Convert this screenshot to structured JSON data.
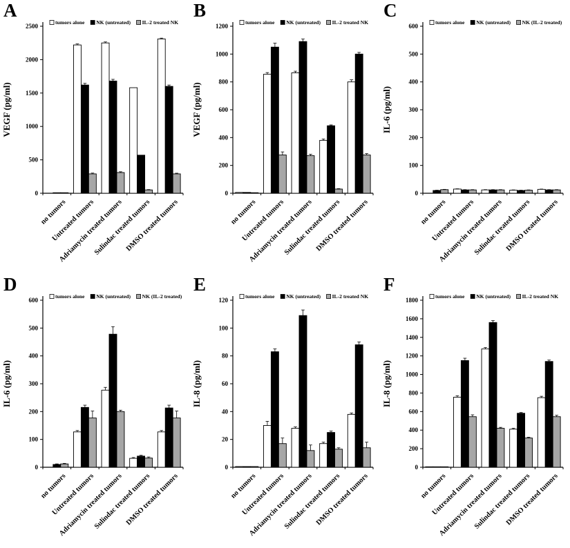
{
  "figure": {
    "description_colors": {
      "bar_white": "#ffffff",
      "bar_black": "#000000",
      "bar_gray": "#a6a6a6",
      "axis": "#000000",
      "background": "#ffffff"
    }
  },
  "chart_data": [
    {
      "letter": "A",
      "type": "bar",
      "title": "",
      "xlabel": "",
      "ylabel": "VEGF (pg/ml)",
      "ylim": [
        0,
        2500
      ],
      "ytick_step": 500,
      "grid": false,
      "legend_position": "top",
      "categories": [
        "no tumors",
        "Untreated tumors",
        "Adriamycin treated tumors",
        "Sulindac treated tumors",
        "DMSO treated tumors"
      ],
      "series": [
        {
          "name": "tumors alone",
          "color": "#ffffff",
          "values": [
            0,
            2220,
            2250,
            1580,
            2310
          ],
          "errors": [
            0,
            15,
            15,
            0,
            12
          ]
        },
        {
          "name": "NK (untreated)",
          "color": "#000000",
          "values": [
            8,
            1620,
            1680,
            570,
            1600
          ],
          "errors": [
            0,
            25,
            25,
            0,
            20
          ]
        },
        {
          "name": "IL-2 treated NK",
          "color": "#a6a6a6",
          "values": [
            8,
            290,
            310,
            50,
            290
          ],
          "errors": [
            0,
            12,
            12,
            5,
            10
          ]
        }
      ]
    },
    {
      "letter": "B",
      "type": "bar",
      "title": "",
      "xlabel": "",
      "ylabel": "VEGF (pg/ml)",
      "ylim": [
        0,
        1200
      ],
      "ytick_step": 200,
      "grid": false,
      "legend_position": "top",
      "categories": [
        "no tumors",
        "Untreated tumors",
        "Adriamycin treated tumors",
        "Sulindac treated tumors",
        "DMSO treated tumors"
      ],
      "series": [
        {
          "name": "tumors alone",
          "color": "#ffffff",
          "values": [
            6,
            855,
            865,
            380,
            800
          ],
          "errors": [
            0,
            12,
            12,
            10,
            15
          ]
        },
        {
          "name": "NK (untreated)",
          "color": "#000000",
          "values": [
            6,
            1050,
            1090,
            485,
            1000
          ],
          "errors": [
            0,
            28,
            18,
            6,
            12
          ]
        },
        {
          "name": "IL-2 treated NK",
          "color": "#a6a6a6",
          "values": [
            4,
            275,
            270,
            30,
            275
          ],
          "errors": [
            0,
            22,
            10,
            3,
            10
          ]
        }
      ]
    },
    {
      "letter": "C",
      "type": "bar",
      "title": "",
      "xlabel": "",
      "ylabel": "IL-6 (pg/ml)",
      "ylim": [
        0,
        600
      ],
      "ytick_step": 100,
      "grid": false,
      "legend_position": "top",
      "categories": [
        "no tumors",
        "Untreated tumors",
        "Adriamycin treated tumors",
        "Sulindac treated tumors",
        "DMSO treated tumors"
      ],
      "series": [
        {
          "name": "tumors alone",
          "color": "#ffffff",
          "values": [
            0,
            15,
            12,
            11,
            14
          ],
          "errors": [
            0,
            1,
            1,
            1,
            1
          ]
        },
        {
          "name": "NK (untreated)",
          "color": "#000000",
          "values": [
            10,
            12,
            12,
            10,
            12
          ],
          "errors": [
            1,
            1,
            1,
            1,
            1
          ]
        },
        {
          "name": "NK (IL-2 treated)",
          "color": "#a6a6a6",
          "values": [
            13,
            12,
            12,
            11,
            12
          ],
          "errors": [
            1,
            1,
            1,
            1,
            1
          ]
        }
      ]
    },
    {
      "letter": "D",
      "type": "bar",
      "title": "",
      "xlabel": "",
      "ylabel": "IL-6 (pg/ml)",
      "ylim": [
        0,
        600
      ],
      "ytick_step": 100,
      "grid": false,
      "legend_position": "top",
      "categories": [
        "no tumors",
        "Untreated tumors",
        "Adriamycin treated tumors",
        "Sulindac treated tumors",
        "DMSO treated tumors"
      ],
      "series": [
        {
          "name": "tumors alone",
          "color": "#ffffff",
          "values": [
            0,
            127,
            277,
            32,
            127
          ],
          "errors": [
            0,
            5,
            10,
            3,
            5
          ]
        },
        {
          "name": "NK (untreated)",
          "color": "#000000",
          "values": [
            10,
            215,
            478,
            40,
            213
          ],
          "errors": [
            2,
            8,
            27,
            3,
            10
          ]
        },
        {
          "name": "NK (IL-2 treated)",
          "color": "#a6a6a6",
          "values": [
            12,
            177,
            200,
            33,
            177
          ],
          "errors": [
            2,
            25,
            5,
            4,
            25
          ]
        }
      ]
    },
    {
      "letter": "E",
      "type": "bar",
      "title": "",
      "xlabel": "",
      "ylabel": "IL-8 (pg/ml)",
      "ylim": [
        0,
        120
      ],
      "ytick_step": 20,
      "grid": false,
      "legend_position": "top",
      "categories": [
        "no tumors",
        "Untreated tumors",
        "Adriamycin treated tumors",
        "Sulindac treated tumors",
        "DMSO treated tumors"
      ],
      "series": [
        {
          "name": "tumors alone",
          "color": "#ffffff",
          "values": [
            0.5,
            30,
            28,
            17,
            38
          ],
          "errors": [
            0,
            3,
            1,
            1,
            1
          ]
        },
        {
          "name": "NK (untreated)",
          "color": "#000000",
          "values": [
            0.5,
            83,
            109,
            25,
            88
          ],
          "errors": [
            0,
            2,
            4,
            1,
            2
          ]
        },
        {
          "name": "IL-2 treated NK",
          "color": "#a6a6a6",
          "values": [
            0.5,
            17,
            12,
            13,
            14
          ],
          "errors": [
            0,
            4,
            4,
            1,
            4
          ]
        }
      ]
    },
    {
      "letter": "F",
      "type": "bar",
      "title": "",
      "xlabel": "",
      "ylabel": "IL-8 (pg/ml)",
      "ylim": [
        0,
        1800
      ],
      "ytick_step": 200,
      "grid": false,
      "legend_position": "top",
      "categories": [
        "no tumors",
        "Untreated tumors",
        "Adriamycin treated tumors",
        "Sulindac treated tumors",
        "DMSO treated tumors"
      ],
      "series": [
        {
          "name": "tumors alone",
          "color": "#ffffff",
          "values": [
            5,
            755,
            1275,
            410,
            750
          ],
          "errors": [
            0,
            15,
            15,
            10,
            15
          ]
        },
        {
          "name": "NK (untreated)",
          "color": "#000000",
          "values": [
            5,
            1150,
            1560,
            582,
            1140
          ],
          "errors": [
            0,
            25,
            20,
            8,
            15
          ]
        },
        {
          "name": "IL-2 treated NK",
          "color": "#a6a6a6",
          "values": [
            5,
            545,
            420,
            315,
            545
          ],
          "errors": [
            0,
            20,
            10,
            8,
            15
          ]
        }
      ]
    }
  ]
}
